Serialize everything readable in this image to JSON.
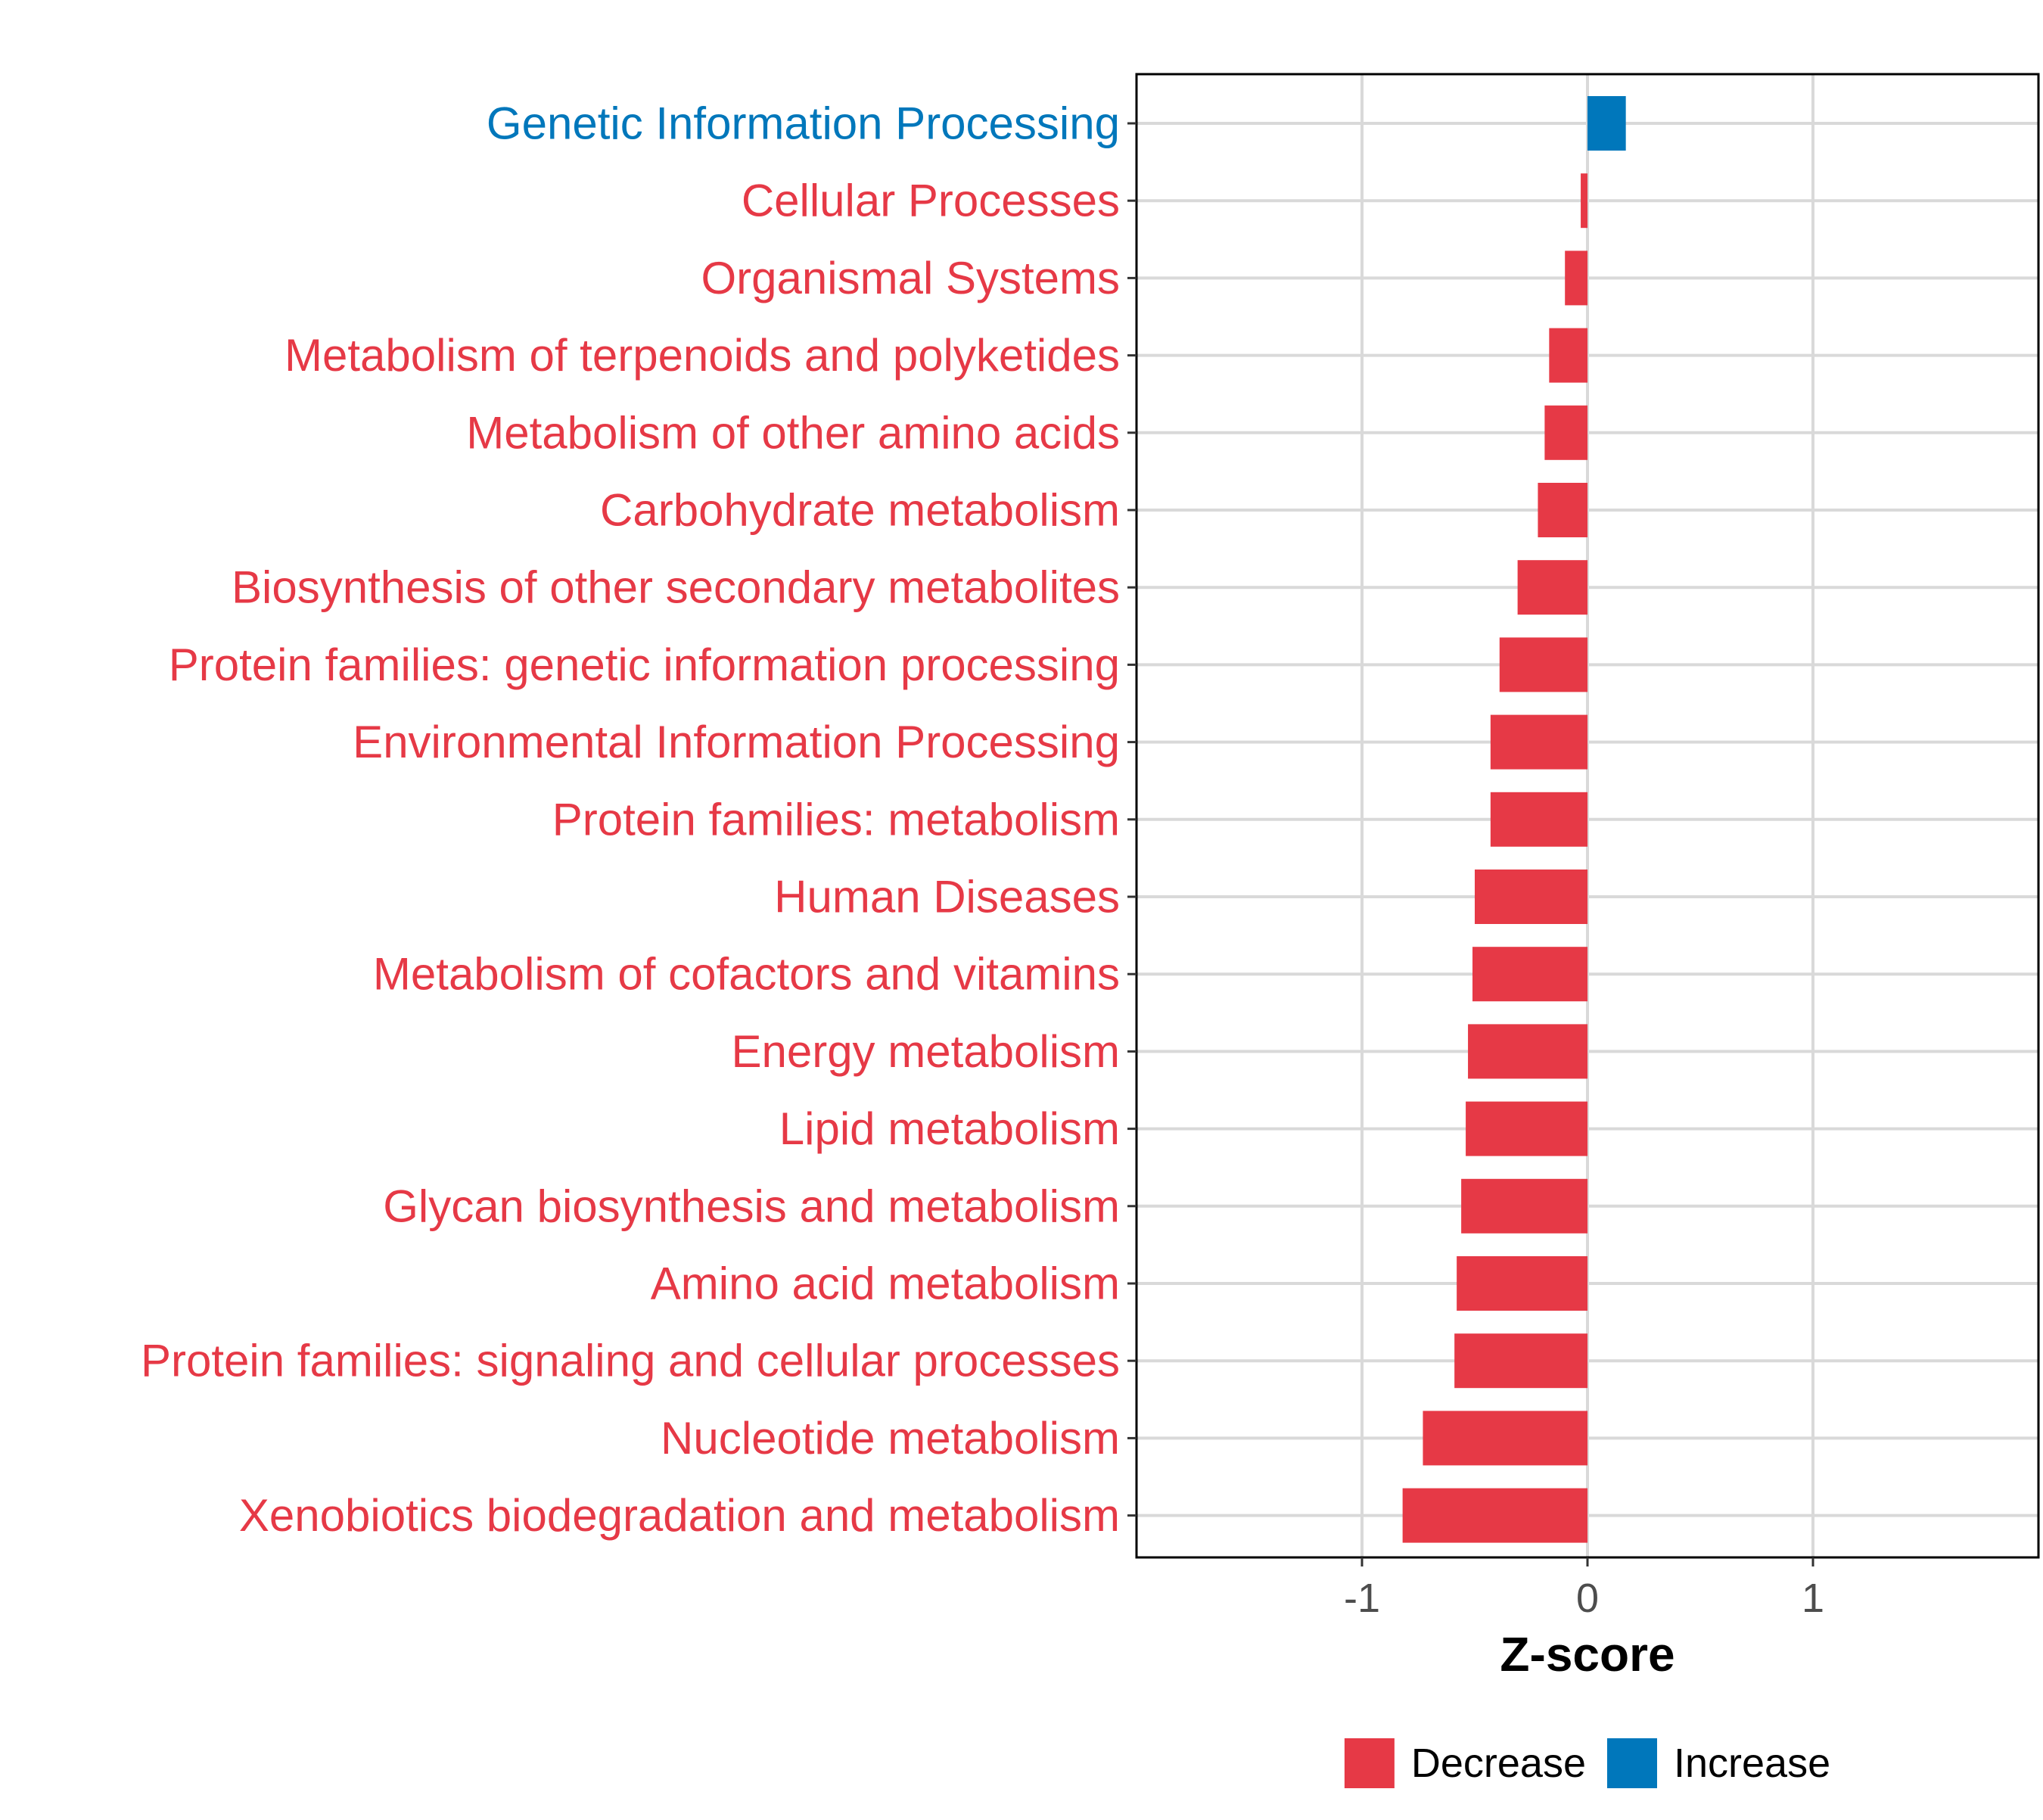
{
  "colors": {
    "decrease": "#E63946",
    "increase": "#0077BB",
    "grid": "#D9D9D9",
    "panel_border": "#000000",
    "tick_text": "#4d4d4d"
  },
  "chart_data": {
    "type": "bar",
    "orientation": "horizontal",
    "title": "",
    "xlabel": "Z-score",
    "ylabel": "",
    "xlim": [
      -2.0,
      2.0
    ],
    "x_ticks": [
      -1,
      0,
      1
    ],
    "x_tick_labels": [
      "-1",
      "0",
      "1"
    ],
    "grid": true,
    "legend_position": "bottom",
    "legend": [
      {
        "label": "Decrease",
        "color_key": "decrease"
      },
      {
        "label": "Increase",
        "color_key": "increase"
      }
    ],
    "categories": [
      "Genetic Information Processing",
      "Cellular Processes",
      "Organismal Systems",
      "Metabolism of terpenoids and polyketides",
      "Metabolism of other amino acids",
      "Carbohydrate metabolism",
      "Biosynthesis of other secondary metabolites",
      "Protein families: genetic information processing",
      "Environmental Information Processing",
      "Protein families: metabolism",
      "Human Diseases",
      "Metabolism of cofactors and vitamins",
      "Energy metabolism",
      "Lipid metabolism",
      "Glycan biosynthesis and metabolism",
      "Amino acid metabolism",
      "Protein families: signaling and cellular processes",
      "Nucleotide metabolism",
      "Xenobiotics biodegradation and metabolism"
    ],
    "values": [
      0.17,
      -0.03,
      -0.1,
      -0.17,
      -0.19,
      -0.22,
      -0.31,
      -0.39,
      -0.43,
      -0.43,
      -0.5,
      -0.51,
      -0.53,
      -0.54,
      -0.56,
      -0.58,
      -0.59,
      -0.73,
      -0.82
    ],
    "groups": [
      "Increase",
      "Decrease",
      "Decrease",
      "Decrease",
      "Decrease",
      "Decrease",
      "Decrease",
      "Decrease",
      "Decrease",
      "Decrease",
      "Decrease",
      "Decrease",
      "Decrease",
      "Decrease",
      "Decrease",
      "Decrease",
      "Decrease",
      "Decrease",
      "Decrease"
    ]
  }
}
